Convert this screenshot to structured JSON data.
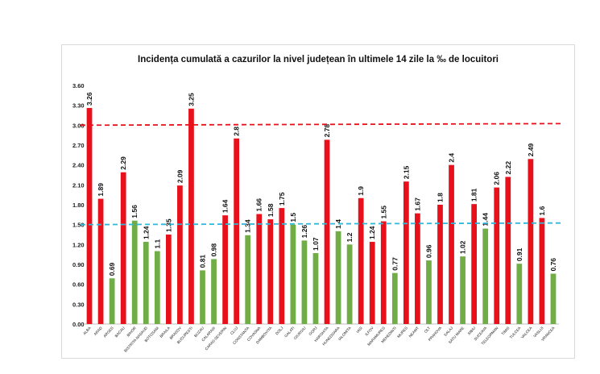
{
  "chart_data": {
    "type": "bar",
    "title": "Incidența cumulată a cazurilor la nivel județean în ultimele 14 zile la ‰ de locuitori",
    "categories": [
      "ALBA",
      "ARAD",
      "ARGES",
      "BACAU",
      "BIHOR",
      "BISTRITA NASAUD",
      "BOTOSANI",
      "BRAILA",
      "BRASOV",
      "BUCURESTI",
      "BUZAU",
      "CALARASI",
      "CARAS-SEVERIN",
      "CLUJ",
      "CONSTANTA",
      "COVASNA",
      "DAMBOVITA",
      "DOLJ",
      "GALATI",
      "GIURGIU",
      "GORJ",
      "HARGHITA",
      "HUNEDOARA",
      "IALOMITA",
      "IASI",
      "ILFOV",
      "MARAMURES",
      "MEHEDINTI",
      "MURES",
      "NEAMT",
      "OLT",
      "PRAHOVA",
      "SALAJ",
      "SATU MARE",
      "SIBIU",
      "SUCEAVA",
      "TELEORMAN",
      "TIMIS",
      "TULCEA",
      "VALCEA",
      "VASLUI",
      "VRANCEA"
    ],
    "values": [
      3.26,
      1.89,
      0.69,
      2.29,
      1.56,
      1.24,
      1.1,
      1.35,
      2.09,
      3.25,
      0.81,
      0.98,
      1.64,
      2.8,
      1.34,
      1.66,
      1.58,
      1.75,
      1.5,
      1.26,
      1.07,
      2.78,
      1.4,
      1.2,
      1.9,
      1.24,
      1.55,
      0.77,
      2.15,
      1.67,
      0.96,
      1.8,
      2.4,
      1.02,
      1.81,
      1.44,
      2.06,
      2.22,
      0.91,
      2.49,
      1.6,
      0.76
    ],
    "value_labels": [
      "3.26",
      "1.89",
      "0.69",
      "2.29",
      "1.56",
      "1.24",
      "1.1",
      "1.35",
      "2.09",
      "3.25",
      "0.81",
      "0.98",
      "1.64",
      "2.8",
      "1.34",
      "1.66",
      "1.58",
      "1.75",
      "1.5",
      "1.26",
      "1.07",
      "2.78",
      "1.4",
      "1.2",
      "1.9",
      "1.24",
      "1.55",
      "0.77",
      "2.15",
      "1.67",
      "0.96",
      "1.8",
      "2.4",
      "1.02",
      "1.81",
      "1.44",
      "2.06",
      "2.22",
      "0.91",
      "2.49",
      "1.6",
      "0.76"
    ],
    "bar_colors": [
      "#e8101a",
      "#e8101a",
      "#70ad47",
      "#e8101a",
      "#70ad47",
      "#70ad47",
      "#70ad47",
      "#e8101a",
      "#e8101a",
      "#e8101a",
      "#70ad47",
      "#70ad47",
      "#e8101a",
      "#e8101a",
      "#70ad47",
      "#e8101a",
      "#e8101a",
      "#e8101a",
      "#70ad47",
      "#70ad47",
      "#70ad47",
      "#e8101a",
      "#70ad47",
      "#70ad47",
      "#e8101a",
      "#e8101a",
      "#e8101a",
      "#70ad47",
      "#e8101a",
      "#e8101a",
      "#70ad47",
      "#e8101a",
      "#e8101a",
      "#70ad47",
      "#e8101a",
      "#70ad47",
      "#e8101a",
      "#e8101a",
      "#70ad47",
      "#e8101a",
      "#e8101a",
      "#70ad47"
    ],
    "yticks": [
      "0.00",
      "0.30",
      "0.60",
      "0.90",
      "1.20",
      "1.50",
      "1.80",
      "2.10",
      "2.40",
      "2.70",
      "3.00",
      "3.30",
      "3.60"
    ],
    "ylim": [
      0,
      3.6
    ],
    "reference_lines": [
      {
        "value": 3.0,
        "color": "#e8101a",
        "style": "dashed"
      },
      {
        "value": 1.5,
        "color": "#2eb8d9",
        "style": "dashed"
      }
    ],
    "grid": false,
    "legend": "none"
  }
}
